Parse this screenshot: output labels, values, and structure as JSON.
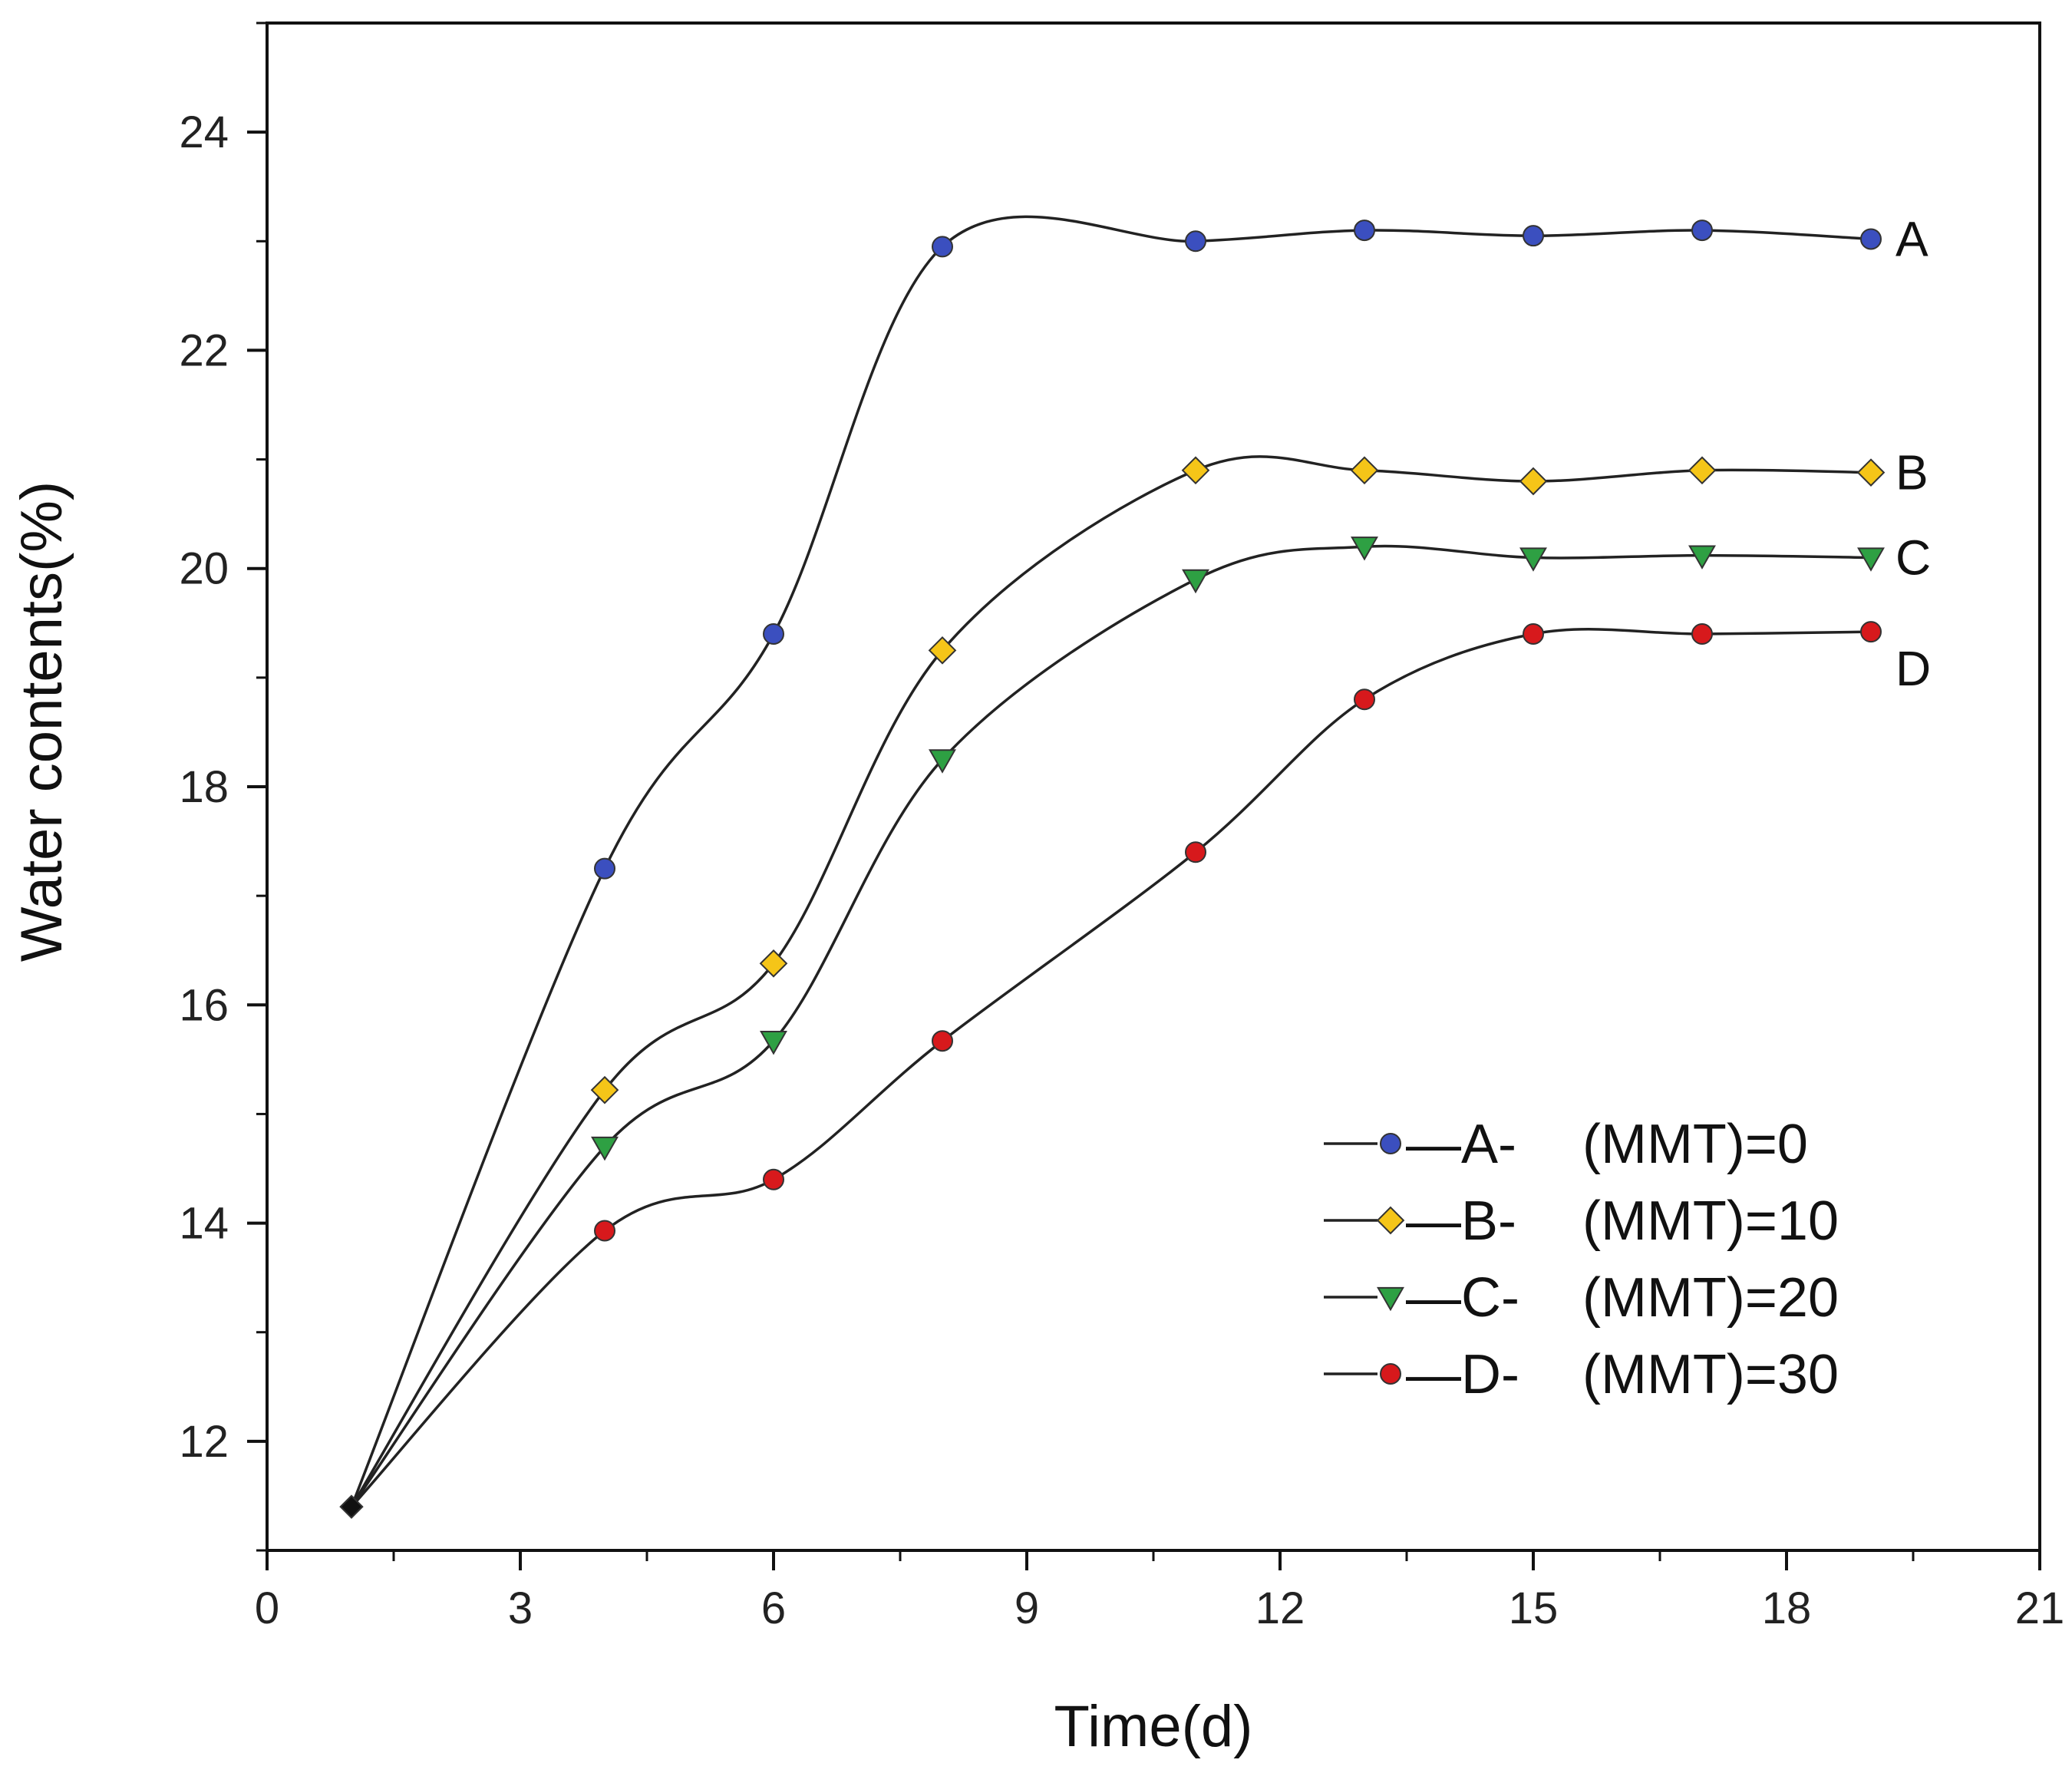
{
  "chart_data": {
    "type": "line",
    "title": "",
    "xlabel": "Time(d)",
    "ylabel": "Water contents(%)",
    "xlim": [
      0,
      21
    ],
    "ylim": [
      11,
      25
    ],
    "xticks": [
      0,
      3,
      6,
      9,
      12,
      15,
      18,
      21
    ],
    "yticks": [
      12,
      14,
      16,
      18,
      20,
      22,
      24
    ],
    "x": [
      1,
      4,
      6,
      8,
      11,
      13,
      15,
      17,
      19
    ],
    "legend_position": "bottom-right",
    "series": [
      {
        "name": "A",
        "legend_label": "—A-",
        "legend_value": "(MMT)=0",
        "marker": "circle",
        "color": "#3b4fbf",
        "values": [
          11.4,
          17.25,
          19.4,
          22.95,
          23.0,
          23.1,
          23.05,
          23.1,
          23.02
        ]
      },
      {
        "name": "B",
        "legend_label": "—B-",
        "legend_value": "(MMT)=10",
        "marker": "diamond",
        "color": "#f5c518",
        "values": [
          11.4,
          15.22,
          16.38,
          19.25,
          20.9,
          20.9,
          20.8,
          20.9,
          20.88
        ]
      },
      {
        "name": "C",
        "legend_label": "—C-",
        "legend_value": "(MMT)=20",
        "marker": "triangle-down",
        "color": "#2ea043",
        "values": [
          11.4,
          14.7,
          15.67,
          18.25,
          19.9,
          20.2,
          20.1,
          20.12,
          20.1
        ]
      },
      {
        "name": "D",
        "legend_label": "—D-",
        "legend_value": "(MMT)=30",
        "marker": "circle",
        "color": "#d7191c",
        "values": [
          11.4,
          13.93,
          14.4,
          15.67,
          17.4,
          18.8,
          19.4,
          19.4,
          19.42
        ]
      }
    ],
    "start_point_color": "#111111"
  }
}
